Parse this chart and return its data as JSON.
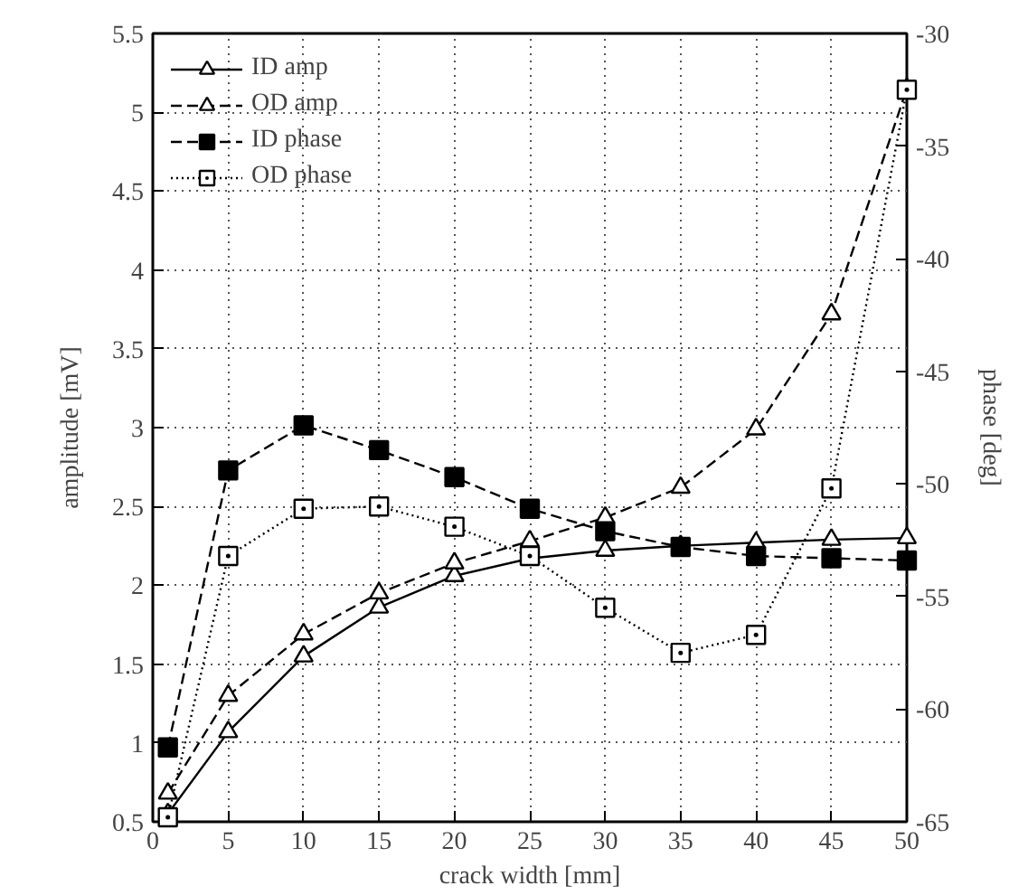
{
  "chart_data": {
    "type": "line",
    "xlabel": "crack width [mm]",
    "ylabel": "amplitude [mV]",
    "y2label": "phase [deg]",
    "x": [
      1,
      5,
      10,
      15,
      20,
      25,
      30,
      35,
      40,
      45,
      50
    ],
    "xlim": [
      0,
      50
    ],
    "xticks": [
      0,
      5,
      10,
      15,
      20,
      25,
      30,
      35,
      40,
      45,
      50
    ],
    "ylim": [
      0.5,
      5.5
    ],
    "yticks": [
      0.5,
      1,
      1.5,
      2,
      2.5,
      3,
      3.5,
      4,
      4.5,
      5,
      5.5
    ],
    "y2lim": [
      -65,
      -30
    ],
    "y2ticks": [
      -65,
      -60,
      -55,
      -50,
      -45,
      -40,
      -35,
      -30
    ],
    "grid": true,
    "legend": "top left",
    "series": [
      {
        "name": "ID amp",
        "color": "#000000",
        "marker": "triangle",
        "line_style": "solid",
        "values": [
          0.55,
          1.07,
          1.55,
          1.86,
          2.06,
          2.17,
          2.22,
          2.25,
          2.27,
          2.29,
          2.3
        ]
      },
      {
        "name": "OD amp",
        "color": "#000000",
        "marker": "triangle",
        "line_style": "dashed",
        "values": [
          0.68,
          1.3,
          1.69,
          1.95,
          2.14,
          2.28,
          2.43,
          2.62,
          2.99,
          3.72,
          5.15
        ]
      },
      {
        "name": "ID phase",
        "color": "#000000",
        "marker": "square",
        "line_style": "dashed",
        "axis": "y2",
        "values": [
          -61.7,
          -49.4,
          -47.4,
          -48.5,
          -49.7,
          -51.1,
          -52.1,
          -52.8,
          -53.2,
          -53.3,
          -53.4
        ]
      },
      {
        "name": "OD phase",
        "color": "#000000",
        "marker": "square_dot",
        "line_style": "dotted",
        "axis": "y2",
        "values": [
          -64.8,
          -53.2,
          -51.1,
          -51.0,
          -51.9,
          -53.2,
          -55.5,
          -57.5,
          -56.7,
          -50.2,
          -32.5
        ]
      }
    ]
  }
}
